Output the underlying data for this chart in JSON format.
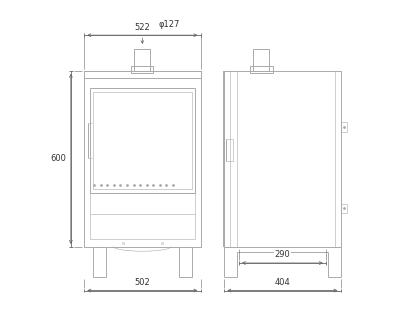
{
  "bg_color": "#ffffff",
  "line_color": "#aaaaaa",
  "dim_color": "#666666",
  "line_width": 0.7,
  "thin_line": 0.4,
  "fig_width": 4.16,
  "fig_height": 3.09,
  "dim_labels": {
    "phi127": "φ127",
    "w522": "522",
    "h600": "600",
    "w502": "502",
    "d290": "290",
    "d404": "404"
  }
}
